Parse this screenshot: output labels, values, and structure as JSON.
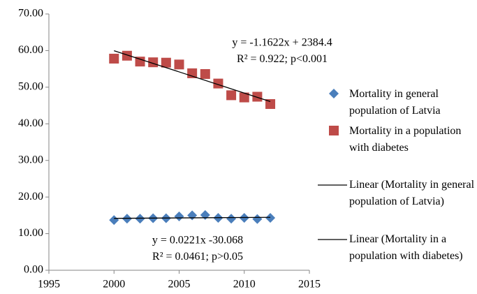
{
  "chart_data": {
    "type": "scatter",
    "x": [
      2000,
      2001,
      2002,
      2003,
      2004,
      2005,
      2006,
      2007,
      2008,
      2009,
      2010,
      2011,
      2012
    ],
    "series": [
      {
        "name": "Mortality in general population of Latvia",
        "color": "#4a7ebb",
        "marker": "diamond",
        "values": [
          13.7,
          14.1,
          14.1,
          14.2,
          14.2,
          14.7,
          15.0,
          15.1,
          14.3,
          14.1,
          14.3,
          14.0,
          14.3
        ]
      },
      {
        "name": "Mortality in a population with diabetes",
        "color": "#be4b48",
        "marker": "square",
        "values": [
          57.8,
          58.6,
          57.0,
          56.8,
          56.7,
          56.2,
          53.8,
          53.6,
          51.0,
          47.8,
          47.2,
          47.4,
          45.4
        ]
      }
    ],
    "trendlines": [
      {
        "name": "Linear (Mortality in general population of Latvia)",
        "color": "#000000"
      },
      {
        "name": "Linear (Mortality in a population with diabetes)",
        "color": "#000000"
      }
    ],
    "annotations": [
      [
        "y = 0.0221x -30.068",
        "R² = 0.0461; p>0.05"
      ],
      [
        "y = -1.1622x + 2384.4",
        "R² = 0.922; p<0.001"
      ]
    ],
    "xlim": [
      1995,
      2015
    ],
    "xticks": [
      1995,
      2000,
      2005,
      2010,
      2015
    ],
    "ylim": [
      0,
      70
    ],
    "yticks": [
      {
        "value": 0,
        "label": "0.00"
      },
      {
        "value": 10,
        "label": "10.00"
      },
      {
        "value": 20,
        "label": "20.00"
      },
      {
        "value": 30,
        "label": "30.00"
      },
      {
        "value": 40,
        "label": "40.00"
      },
      {
        "value": 50,
        "label": "50.00"
      },
      {
        "value": 60,
        "label": "60.00"
      },
      {
        "value": 70,
        "label": "70.00"
      }
    ],
    "grid": false
  }
}
